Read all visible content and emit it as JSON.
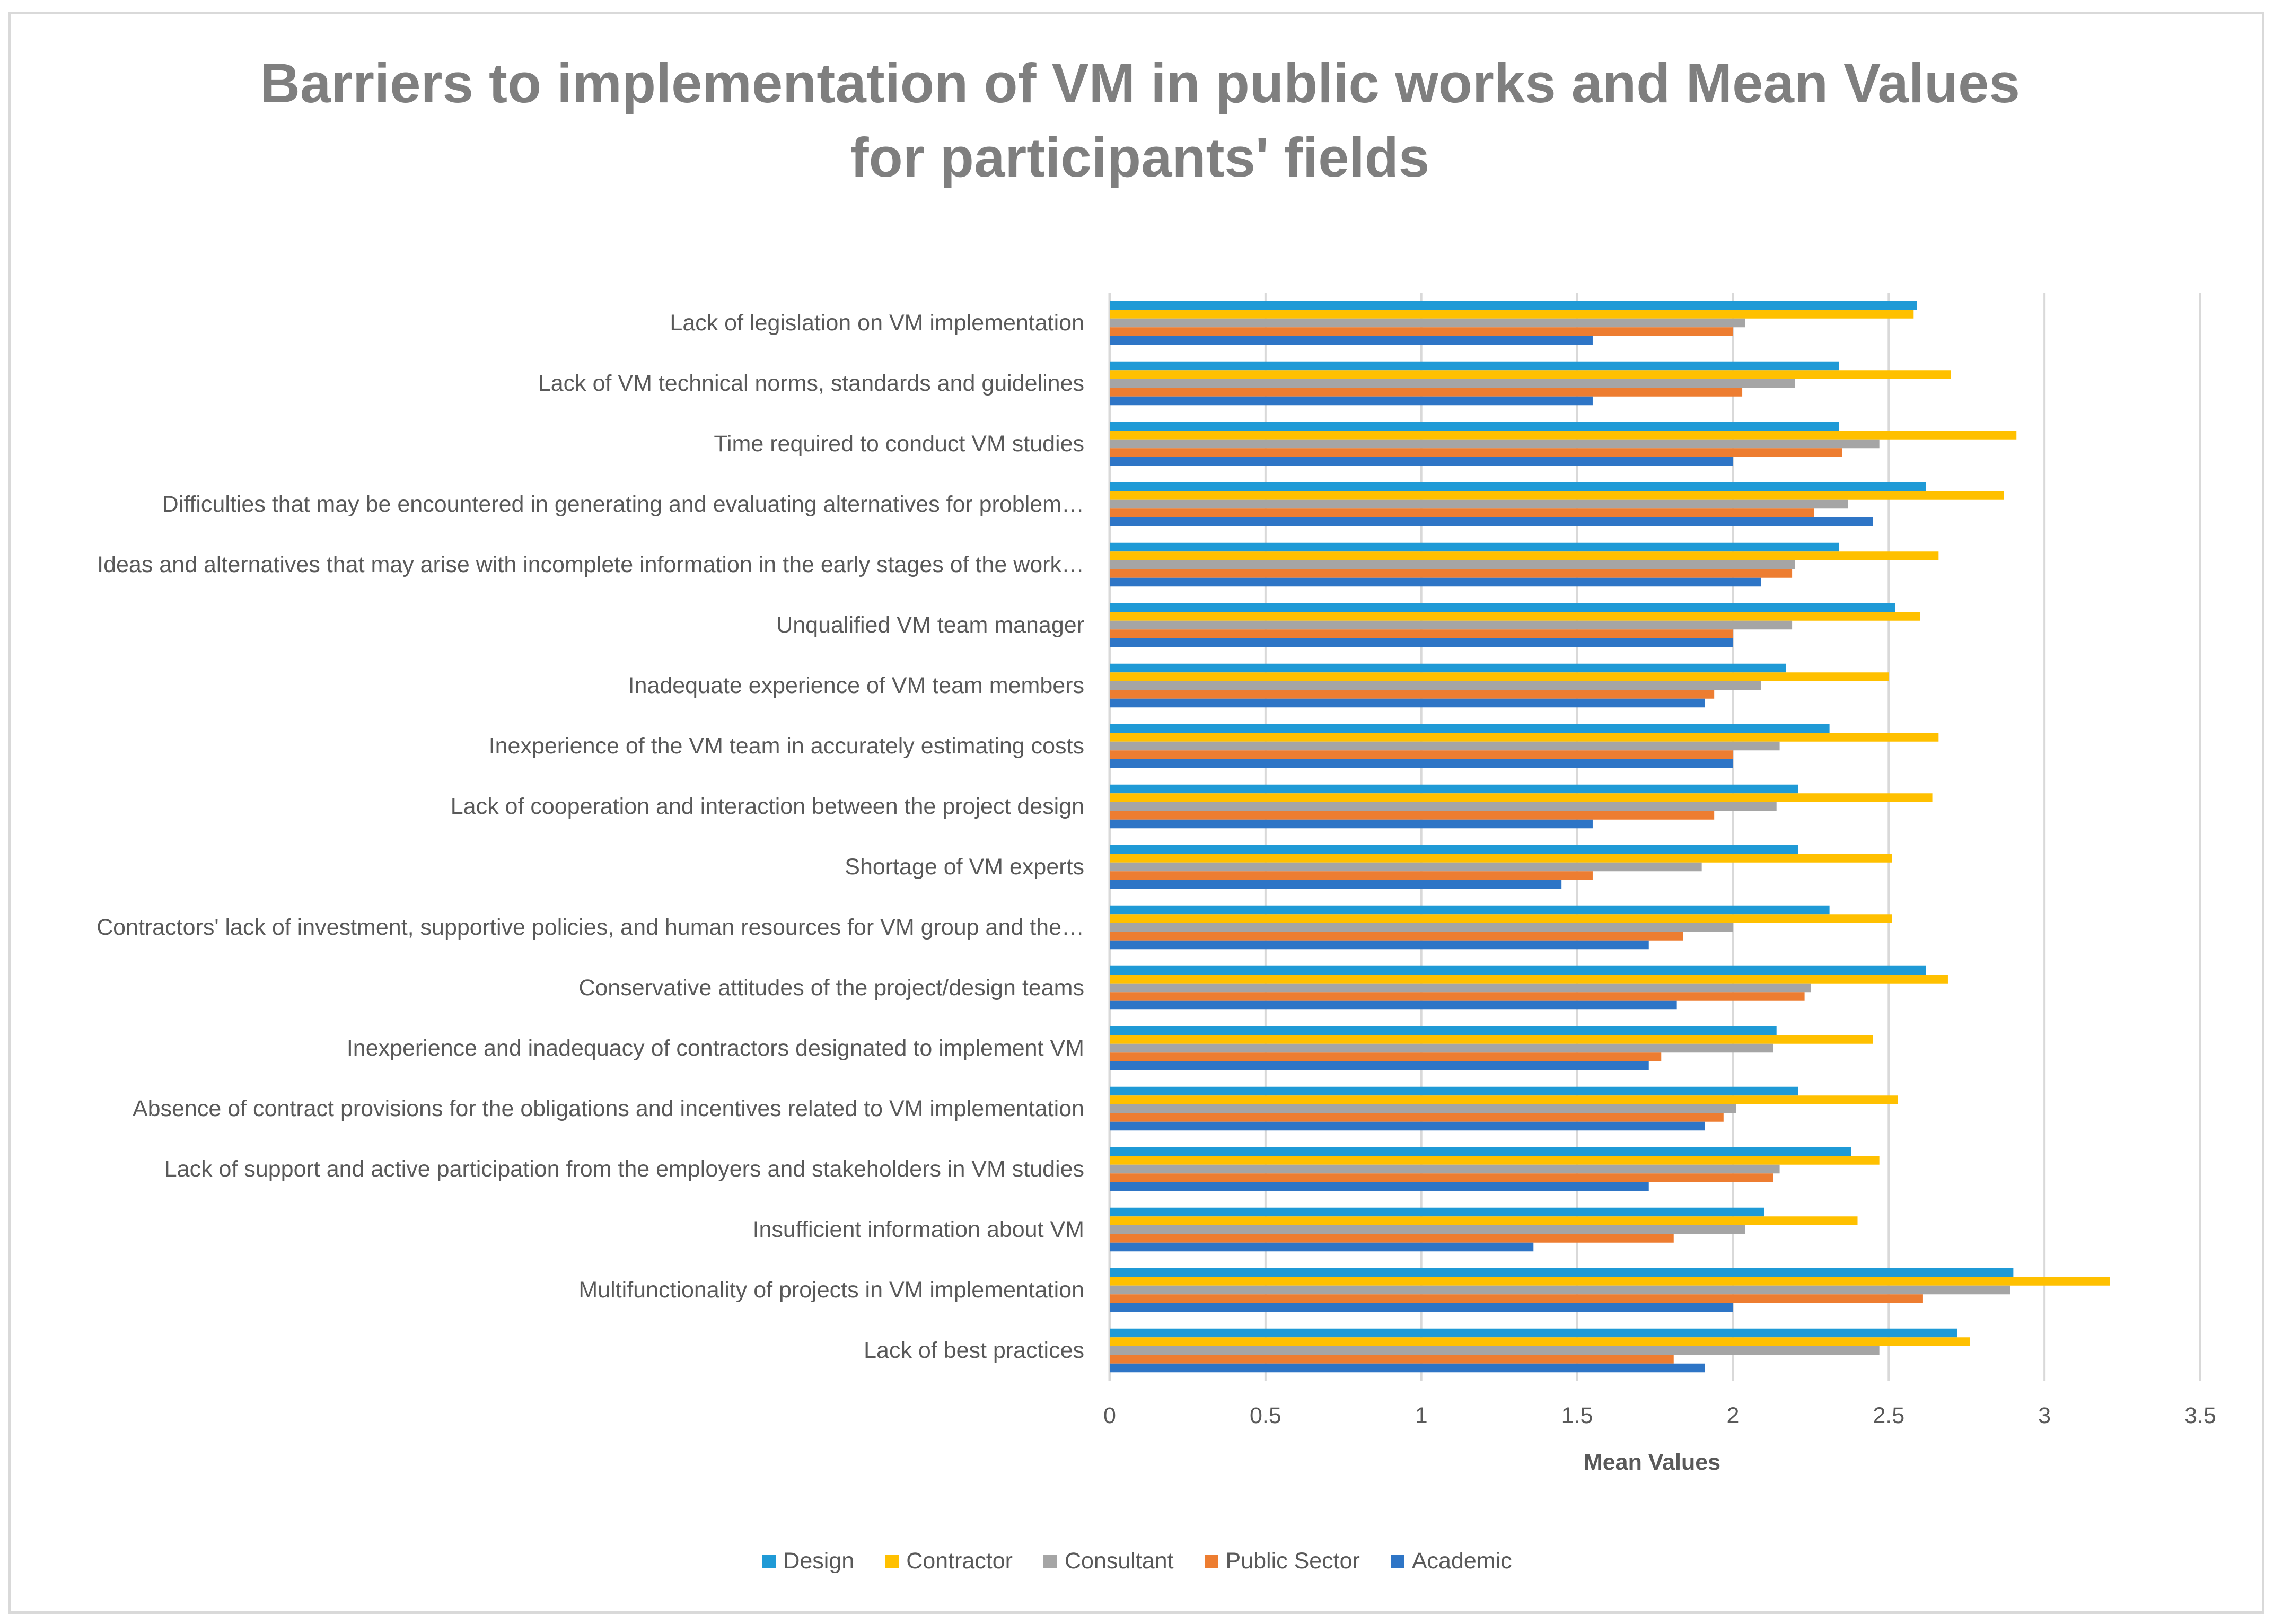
{
  "chart_data": {
    "type": "bar",
    "orientation": "horizontal",
    "title": "Barriers to implementation of VM in public works and Mean Values for participants' fields",
    "title_lines": [
      "Barriers to implementation of VM in public works and Mean Values",
      "for participants' fields"
    ],
    "xlabel": "Mean Values",
    "ylabel": "",
    "xlim": [
      0,
      3.5
    ],
    "xticks": [
      "0",
      "0.5",
      "1",
      "1.5",
      "2",
      "2.5",
      "3",
      "3.5"
    ],
    "grid": true,
    "legend_position": "bottom",
    "categories": [
      "Lack of legislation on VM implementation",
      "Lack of VM technical norms, standards and guidelines",
      "Time required to conduct VM studies",
      "Difficulties that may be encountered in generating and evaluating alternatives for problem…",
      "Ideas and alternatives that may arise with incomplete information in the early stages of the work…",
      "Unqualified VM team manager",
      "Inadequate experience of VM team members",
      "Inexperience of the VM team in accurately estimating costs",
      "Lack of cooperation and interaction between the project design",
      "Shortage of VM experts",
      "Contractors' lack of investment, supportive policies, and human resources for VM group and the…",
      "Conservative attitudes of the  project/design teams",
      "Inexperience and inadequacy of contractors designated to implement VM",
      "Absence of contract provisions for the obligations and incentives related to VM implementation",
      "Lack of support and active participation from the employers and stakeholders in VM studies",
      "Insufficient information about VM",
      "Multifunctionality of projects in VM implementation",
      "Lack of best practices"
    ],
    "series": [
      {
        "name": "Design",
        "color": "#1f9ad6",
        "values": [
          2.59,
          2.34,
          2.34,
          2.62,
          2.34,
          2.52,
          2.17,
          2.31,
          2.21,
          2.21,
          2.31,
          2.62,
          2.14,
          2.21,
          2.38,
          2.1,
          2.9,
          2.72
        ]
      },
      {
        "name": "Contractor",
        "color": "#ffc000",
        "values": [
          2.58,
          2.7,
          2.91,
          2.87,
          2.66,
          2.6,
          2.5,
          2.66,
          2.64,
          2.51,
          2.51,
          2.69,
          2.45,
          2.53,
          2.47,
          2.4,
          3.21,
          2.76
        ]
      },
      {
        "name": "Consultant",
        "color": "#a5a5a5",
        "values": [
          2.04,
          2.2,
          2.47,
          2.37,
          2.2,
          2.19,
          2.09,
          2.15,
          2.14,
          1.9,
          2.0,
          2.25,
          2.13,
          2.01,
          2.15,
          2.04,
          2.89,
          2.47
        ]
      },
      {
        "name": "Public Sector",
        "color": "#ed7d31",
        "values": [
          2.0,
          2.03,
          2.35,
          2.26,
          2.19,
          2.0,
          1.94,
          2.0,
          1.94,
          1.55,
          1.84,
          2.23,
          1.77,
          1.97,
          2.13,
          1.81,
          2.61,
          1.81
        ]
      },
      {
        "name": "Academic",
        "color": "#2e75c6",
        "values": [
          1.55,
          1.55,
          2.0,
          2.45,
          2.09,
          2.0,
          1.91,
          2.0,
          1.55,
          1.45,
          1.73,
          1.82,
          1.73,
          1.91,
          1.73,
          1.36,
          2.0,
          1.91
        ]
      }
    ]
  }
}
